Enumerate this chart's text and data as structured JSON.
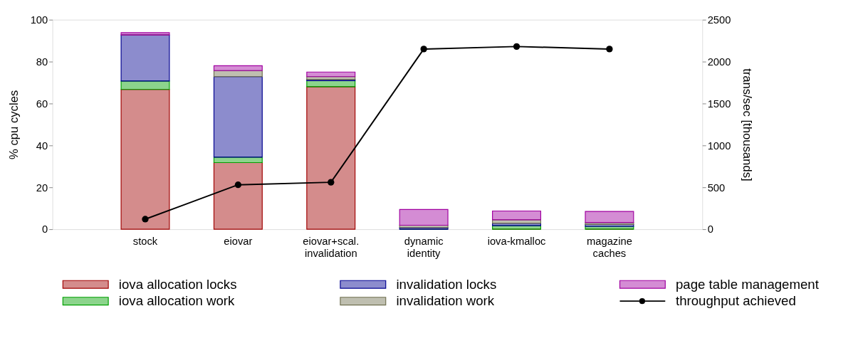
{
  "chart_data": {
    "type": "bar",
    "stacked": true,
    "ylabel": "% cpu cycles",
    "y2label": "trans/sec [thousands]",
    "categories": [
      "stock",
      "eiovar",
      "eiovar+scal.\ninvalidation",
      "dynamic\nidentity",
      "iova-kmalloc",
      "magazine\ncaches"
    ],
    "ylim": [
      0,
      100
    ],
    "yticks": [
      0,
      20,
      40,
      60,
      80,
      100
    ],
    "y2lim": [
      0,
      2500
    ],
    "y2ticks": [
      0,
      500,
      1000,
      1500,
      2000,
      2500
    ],
    "grid": false,
    "legend": "bottom",
    "series": [
      {
        "name": "iova allocation locks",
        "color": "#a00000",
        "values": [
          66.7,
          31.8,
          68.0,
          0,
          0,
          0
        ]
      },
      {
        "name": "iova allocation work",
        "color": "#00a000",
        "values": [
          4.0,
          2.6,
          2.9,
          0,
          1.7,
          1.3
        ]
      },
      {
        "name": "invalidation locks",
        "color": "#000090",
        "values": [
          22.0,
          38.4,
          0.6,
          0.8,
          1.2,
          1.0
        ]
      },
      {
        "name": "invalidation work",
        "color": "#707050",
        "values": [
          0,
          2.9,
          1.3,
          1.1,
          1.6,
          0.9
        ]
      },
      {
        "name": "page table management",
        "color": "#a000a0",
        "values": [
          1.1,
          2.3,
          2.2,
          7.5,
          4.2,
          5.3
        ]
      },
      {
        "name": "throughput achieved",
        "type": "line",
        "axis": "y2",
        "color": "#000000",
        "marker": "circle",
        "values": [
          120,
          530,
          560,
          2150,
          2180,
          2150
        ]
      }
    ]
  }
}
